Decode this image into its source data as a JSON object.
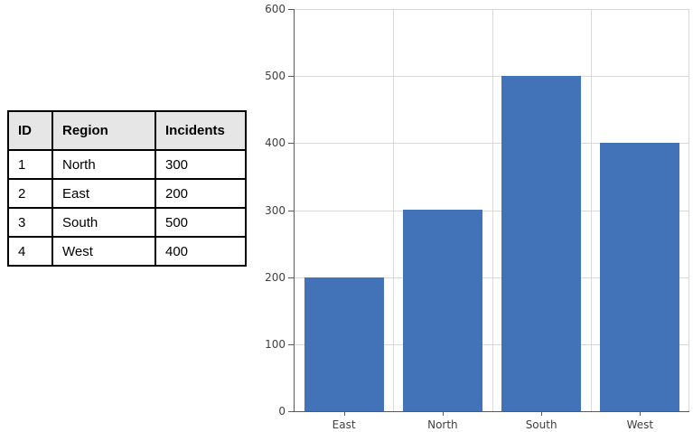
{
  "table": {
    "columns": [
      "ID",
      "Region",
      "Incidents"
    ],
    "rows": [
      [
        "1",
        "North",
        "300"
      ],
      [
        "2",
        "East",
        "200"
      ],
      [
        "3",
        "South",
        "500"
      ],
      [
        "4",
        "West",
        "400"
      ]
    ]
  },
  "chart_data": {
    "type": "bar",
    "categories": [
      "East",
      "North",
      "South",
      "West"
    ],
    "values": [
      200,
      300,
      500,
      400
    ],
    "title": "",
    "xlabel": "",
    "ylabel": "",
    "ylim": [
      0,
      600
    ],
    "ytick_step": 100,
    "grid": true,
    "legend": false
  },
  "colors": {
    "bar": "#4273B8",
    "gridline": "#D9D9D9",
    "axis": "#595959",
    "tick_label": "#404040",
    "table_border": "#000000",
    "table_header_bg": "#E7E6E6",
    "table_text": "#000000"
  }
}
